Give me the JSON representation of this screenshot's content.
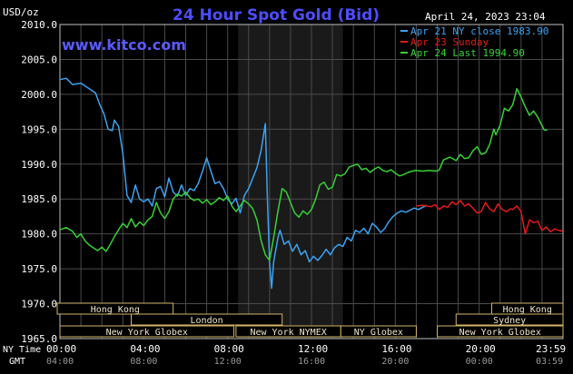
{
  "chart_data": {
    "type": "line",
    "title": "24 Hour Spot Gold (Bid)",
    "website": "www.kitco.com",
    "datetime": "April 24, 2023 23:04",
    "ylabel": "USD/oz",
    "ylim": [
      1965.0,
      2010.0
    ],
    "yticks": [
      "1965.0",
      "1970.0",
      "1975.0",
      "1980.0",
      "1985.0",
      "1990.0",
      "1995.0",
      "2000.0",
      "2005.0",
      "2010.0"
    ],
    "xlim": [
      0,
      24
    ],
    "grid": true,
    "shaded_hours": [
      8.5,
      13.5
    ],
    "x_axis_label": "NY Time",
    "x_axis_label2": "GMT",
    "ny_ticks": [
      "00:00",
      "04:00",
      "08:00",
      "12:00",
      "16:00",
      "20:00",
      "23:59"
    ],
    "gmt_ticks": [
      "04:00",
      "08:00",
      "12:00",
      "16:00",
      "20:00",
      "00:00",
      "03:59"
    ],
    "legend_position": "top-right",
    "series": [
      {
        "name": "Apr 21 NY close 1983.90",
        "color": "#3aa3f2",
        "points": [
          [
            0.0,
            2002.1
          ],
          [
            0.3,
            2002.3
          ],
          [
            0.6,
            2001.4
          ],
          [
            1.0,
            2001.6
          ],
          [
            1.3,
            2001.0
          ],
          [
            1.5,
            2000.6
          ],
          [
            1.7,
            2000.2
          ],
          [
            1.9,
            1998.5
          ],
          [
            2.1,
            1997.2
          ],
          [
            2.3,
            1995.0
          ],
          [
            2.5,
            1994.8
          ],
          [
            2.6,
            1996.3
          ],
          [
            2.8,
            1995.4
          ],
          [
            3.0,
            1991.5
          ],
          [
            3.2,
            1985.5
          ],
          [
            3.4,
            1984.5
          ],
          [
            3.6,
            1987.0
          ],
          [
            3.8,
            1985.0
          ],
          [
            4.0,
            1984.6
          ],
          [
            4.2,
            1985.0
          ],
          [
            4.4,
            1984.0
          ],
          [
            4.6,
            1986.5
          ],
          [
            4.8,
            1986.8
          ],
          [
            5.0,
            1985.3
          ],
          [
            5.2,
            1988.0
          ],
          [
            5.4,
            1986.0
          ],
          [
            5.6,
            1985.4
          ],
          [
            5.8,
            1987.0
          ],
          [
            6.0,
            1985.5
          ],
          [
            6.2,
            1986.5
          ],
          [
            6.4,
            1986.2
          ],
          [
            6.6,
            1987.2
          ],
          [
            6.8,
            1989.0
          ],
          [
            7.0,
            1990.9
          ],
          [
            7.2,
            1989.0
          ],
          [
            7.4,
            1987.2
          ],
          [
            7.6,
            1987.5
          ],
          [
            7.8,
            1986.5
          ],
          [
            8.0,
            1985.0
          ],
          [
            8.2,
            1984.3
          ],
          [
            8.4,
            1985.1
          ],
          [
            8.6,
            1983.0
          ],
          [
            8.8,
            1985.5
          ],
          [
            9.0,
            1986.5
          ],
          [
            9.2,
            1988.0
          ],
          [
            9.4,
            1989.5
          ],
          [
            9.6,
            1992.0
          ],
          [
            9.8,
            1995.8
          ],
          [
            9.9,
            1985.0
          ],
          [
            10.0,
            1976.0
          ],
          [
            10.1,
            1972.2
          ],
          [
            10.2,
            1976.0
          ],
          [
            10.4,
            1979.5
          ],
          [
            10.5,
            1980.5
          ],
          [
            10.7,
            1978.5
          ],
          [
            10.9,
            1979.0
          ],
          [
            11.1,
            1977.5
          ],
          [
            11.3,
            1978.5
          ],
          [
            11.5,
            1977.0
          ],
          [
            11.7,
            1977.6
          ],
          [
            11.9,
            1976.0
          ],
          [
            12.1,
            1976.8
          ],
          [
            12.3,
            1976.2
          ],
          [
            12.5,
            1976.9
          ],
          [
            12.7,
            1977.8
          ],
          [
            12.9,
            1977.0
          ],
          [
            13.1,
            1978.0
          ],
          [
            13.3,
            1978.5
          ],
          [
            13.5,
            1978.2
          ],
          [
            13.7,
            1979.5
          ],
          [
            13.9,
            1979.0
          ],
          [
            14.1,
            1980.5
          ],
          [
            14.3,
            1980.2
          ],
          [
            14.5,
            1980.8
          ],
          [
            14.7,
            1980.0
          ],
          [
            14.9,
            1981.5
          ],
          [
            15.1,
            1981.0
          ],
          [
            15.3,
            1980.2
          ],
          [
            15.5,
            1980.8
          ],
          [
            15.7,
            1981.8
          ],
          [
            15.9,
            1982.5
          ],
          [
            16.1,
            1983.0
          ],
          [
            16.3,
            1983.3
          ],
          [
            16.5,
            1983.1
          ],
          [
            16.7,
            1983.4
          ],
          [
            16.9,
            1983.7
          ],
          [
            17.1,
            1983.5
          ],
          [
            17.3,
            1983.8
          ],
          [
            17.5,
            1984.1
          ]
        ]
      },
      {
        "name": "Apr 23 Sunday",
        "color": "#e31a1a",
        "points": [
          [
            17.0,
            1984.0
          ],
          [
            17.3,
            1984.1
          ],
          [
            17.5,
            1984.0
          ],
          [
            17.7,
            1983.9
          ],
          [
            17.9,
            1984.2
          ],
          [
            18.1,
            1983.5
          ],
          [
            18.3,
            1984.0
          ],
          [
            18.5,
            1983.8
          ],
          [
            18.7,
            1984.6
          ],
          [
            18.9,
            1984.2
          ],
          [
            19.1,
            1984.8
          ],
          [
            19.3,
            1984.0
          ],
          [
            19.5,
            1984.3
          ],
          [
            19.7,
            1983.7
          ],
          [
            19.9,
            1983.0
          ],
          [
            20.1,
            1983.2
          ],
          [
            20.3,
            1984.5
          ],
          [
            20.5,
            1983.6
          ],
          [
            20.7,
            1983.2
          ],
          [
            20.9,
            1984.3
          ],
          [
            21.1,
            1983.5
          ],
          [
            21.3,
            1983.2
          ],
          [
            21.5,
            1983.6
          ],
          [
            21.6,
            1983.5
          ],
          [
            21.8,
            1984.0
          ],
          [
            22.0,
            1983.2
          ],
          [
            22.2,
            1980.0
          ],
          [
            22.4,
            1982.0
          ],
          [
            22.6,
            1981.6
          ],
          [
            22.8,
            1981.8
          ],
          [
            23.0,
            1980.5
          ],
          [
            23.2,
            1981.0
          ],
          [
            23.4,
            1980.3
          ],
          [
            23.6,
            1980.7
          ],
          [
            23.8,
            1980.5
          ],
          [
            23.99,
            1980.4
          ]
        ]
      },
      {
        "name": "Apr 24 Last 1994.90",
        "color": "#36d136",
        "points": [
          [
            0.0,
            1980.6
          ],
          [
            0.3,
            1980.9
          ],
          [
            0.6,
            1980.4
          ],
          [
            0.8,
            1979.5
          ],
          [
            1.0,
            1980.0
          ],
          [
            1.2,
            1979.0
          ],
          [
            1.4,
            1978.4
          ],
          [
            1.6,
            1978.0
          ],
          [
            1.8,
            1977.6
          ],
          [
            2.0,
            1978.1
          ],
          [
            2.2,
            1977.5
          ],
          [
            2.4,
            1978.5
          ],
          [
            2.6,
            1979.6
          ],
          [
            2.8,
            1980.6
          ],
          [
            3.0,
            1981.5
          ],
          [
            3.2,
            1980.9
          ],
          [
            3.4,
            1982.2
          ],
          [
            3.6,
            1981.0
          ],
          [
            3.8,
            1981.7
          ],
          [
            4.0,
            1981.2
          ],
          [
            4.2,
            1982.0
          ],
          [
            4.4,
            1982.5
          ],
          [
            4.6,
            1984.5
          ],
          [
            4.8,
            1983.0
          ],
          [
            5.0,
            1982.2
          ],
          [
            5.2,
            1983.2
          ],
          [
            5.4,
            1985.0
          ],
          [
            5.6,
            1985.7
          ],
          [
            5.8,
            1985.4
          ],
          [
            6.0,
            1986.0
          ],
          [
            6.2,
            1985.2
          ],
          [
            6.4,
            1984.8
          ],
          [
            6.6,
            1985.0
          ],
          [
            6.8,
            1984.4
          ],
          [
            7.0,
            1984.9
          ],
          [
            7.2,
            1984.2
          ],
          [
            7.4,
            1984.6
          ],
          [
            7.6,
            1985.2
          ],
          [
            7.8,
            1984.8
          ],
          [
            8.0,
            1985.4
          ],
          [
            8.2,
            1984.0
          ],
          [
            8.4,
            1983.2
          ],
          [
            8.6,
            1984.0
          ],
          [
            8.8,
            1984.8
          ],
          [
            9.0,
            1984.3
          ],
          [
            9.2,
            1983.6
          ],
          [
            9.4,
            1982.0
          ],
          [
            9.6,
            1979.0
          ],
          [
            9.8,
            1977.0
          ],
          [
            10.0,
            1976.2
          ],
          [
            10.2,
            1979.5
          ],
          [
            10.4,
            1983.3
          ],
          [
            10.6,
            1986.5
          ],
          [
            10.8,
            1986.0
          ],
          [
            11.0,
            1984.5
          ],
          [
            11.2,
            1983.0
          ],
          [
            11.4,
            1982.4
          ],
          [
            11.6,
            1983.3
          ],
          [
            11.8,
            1982.8
          ],
          [
            12.0,
            1983.5
          ],
          [
            12.2,
            1985.0
          ],
          [
            12.4,
            1987.0
          ],
          [
            12.6,
            1987.4
          ],
          [
            12.8,
            1986.4
          ],
          [
            13.0,
            1986.7
          ],
          [
            13.2,
            1988.5
          ],
          [
            13.4,
            1988.3
          ],
          [
            13.6,
            1988.6
          ],
          [
            13.8,
            1989.6
          ],
          [
            14.0,
            1989.8
          ],
          [
            14.2,
            1990.0
          ],
          [
            14.4,
            1989.2
          ],
          [
            14.6,
            1989.4
          ],
          [
            14.8,
            1988.8
          ],
          [
            15.0,
            1989.3
          ],
          [
            15.2,
            1989.6
          ],
          [
            15.4,
            1989.1
          ],
          [
            15.6,
            1988.9
          ],
          [
            15.8,
            1989.2
          ],
          [
            16.0,
            1988.7
          ],
          [
            16.2,
            1988.3
          ],
          [
            16.4,
            1988.5
          ],
          [
            16.6,
            1988.8
          ],
          [
            16.8,
            1989.0
          ],
          [
            17.0,
            1989.1
          ],
          [
            17.3,
            1989.0
          ],
          [
            17.6,
            1989.1
          ],
          [
            18.0,
            1989.0
          ],
          [
            18.1,
            1989.2
          ],
          [
            18.3,
            1990.6
          ],
          [
            18.6,
            1991.0
          ],
          [
            18.9,
            1990.5
          ],
          [
            19.1,
            1991.4
          ],
          [
            19.3,
            1990.8
          ],
          [
            19.5,
            1990.9
          ],
          [
            19.7,
            1991.9
          ],
          [
            19.9,
            1992.5
          ],
          [
            20.1,
            1991.4
          ],
          [
            20.3,
            1991.6
          ],
          [
            20.5,
            1992.8
          ],
          [
            20.7,
            1995.0
          ],
          [
            20.8,
            1994.2
          ],
          [
            21.0,
            1995.6
          ],
          [
            21.2,
            1998.0
          ],
          [
            21.4,
            1997.6
          ],
          [
            21.6,
            1998.5
          ],
          [
            21.8,
            2000.8
          ],
          [
            22.0,
            1999.6
          ],
          [
            22.2,
            1998.2
          ],
          [
            22.4,
            1997.0
          ],
          [
            22.6,
            1997.6
          ],
          [
            22.8,
            1996.7
          ],
          [
            23.0,
            1995.5
          ],
          [
            23.1,
            1994.9
          ],
          [
            23.25,
            1994.9
          ]
        ]
      }
    ],
    "session_bars": [
      {
        "label": "Hong Kong",
        "start": -0.9,
        "end": 5.4,
        "row": 0
      },
      {
        "label": "London",
        "start": 3.4,
        "end": 10.6,
        "row": 1
      },
      {
        "label": "New York Globex",
        "start": 0.0,
        "end": 8.3,
        "row": 2
      },
      {
        "label": "New York NYMEX",
        "start": 8.4,
        "end": 13.4,
        "row": 2
      },
      {
        "label": "NY Globex",
        "start": 13.4,
        "end": 17.0,
        "row": 2
      },
      {
        "label": "Hong Kong",
        "start": 20.6,
        "end": 24.5,
        "row": 0
      },
      {
        "label": "Sydney",
        "start": 18.9,
        "end": 24.0,
        "row": 1
      },
      {
        "label": "New York Globex",
        "start": 18.0,
        "end": 24.0,
        "row": 2
      }
    ]
  }
}
